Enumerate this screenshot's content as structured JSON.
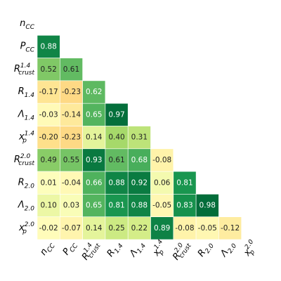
{
  "chart_data": {
    "type": "heatmap",
    "title": "",
    "variables": [
      {
        "base": "n",
        "sub": "CC",
        "sup": ""
      },
      {
        "base": "P",
        "sub": "CC",
        "sup": ""
      },
      {
        "base": "R",
        "sub": "crust",
        "sup": "1.4"
      },
      {
        "base": "R",
        "sub": "1.4",
        "sup": ""
      },
      {
        "base": "Λ",
        "sub": "1.4",
        "sup": ""
      },
      {
        "base": "x",
        "sub": "p",
        "sup": "1.4"
      },
      {
        "base": "R",
        "sub": "crust",
        "sup": "2.0"
      },
      {
        "base": "R",
        "sub": "2.0",
        "sup": ""
      },
      {
        "base": "Λ",
        "sub": "2.0",
        "sup": ""
      },
      {
        "base": "x",
        "sub": "p",
        "sup": "2.0"
      }
    ],
    "matrix_lower": [
      [],
      [
        0.88
      ],
      [
        0.52,
        0.61
      ],
      [
        -0.17,
        -0.23,
        0.62
      ],
      [
        -0.03,
        -0.14,
        0.65,
        0.97
      ],
      [
        -0.2,
        -0.23,
        0.14,
        0.4,
        0.31
      ],
      [
        0.49,
        0.55,
        0.93,
        0.61,
        0.68,
        -0.08
      ],
      [
        0.01,
        -0.04,
        0.66,
        0.88,
        0.92,
        0.06,
        0.81
      ],
      [
        0.1,
        0.03,
        0.65,
        0.81,
        0.88,
        -0.05,
        0.83,
        0.98
      ],
      [
        -0.02,
        -0.07,
        0.14,
        0.25,
        0.22,
        0.89,
        -0.08,
        -0.05,
        -0.12
      ]
    ],
    "colormap": "RdYlGn",
    "value_range": [
      -1,
      1
    ],
    "legend": "none"
  }
}
